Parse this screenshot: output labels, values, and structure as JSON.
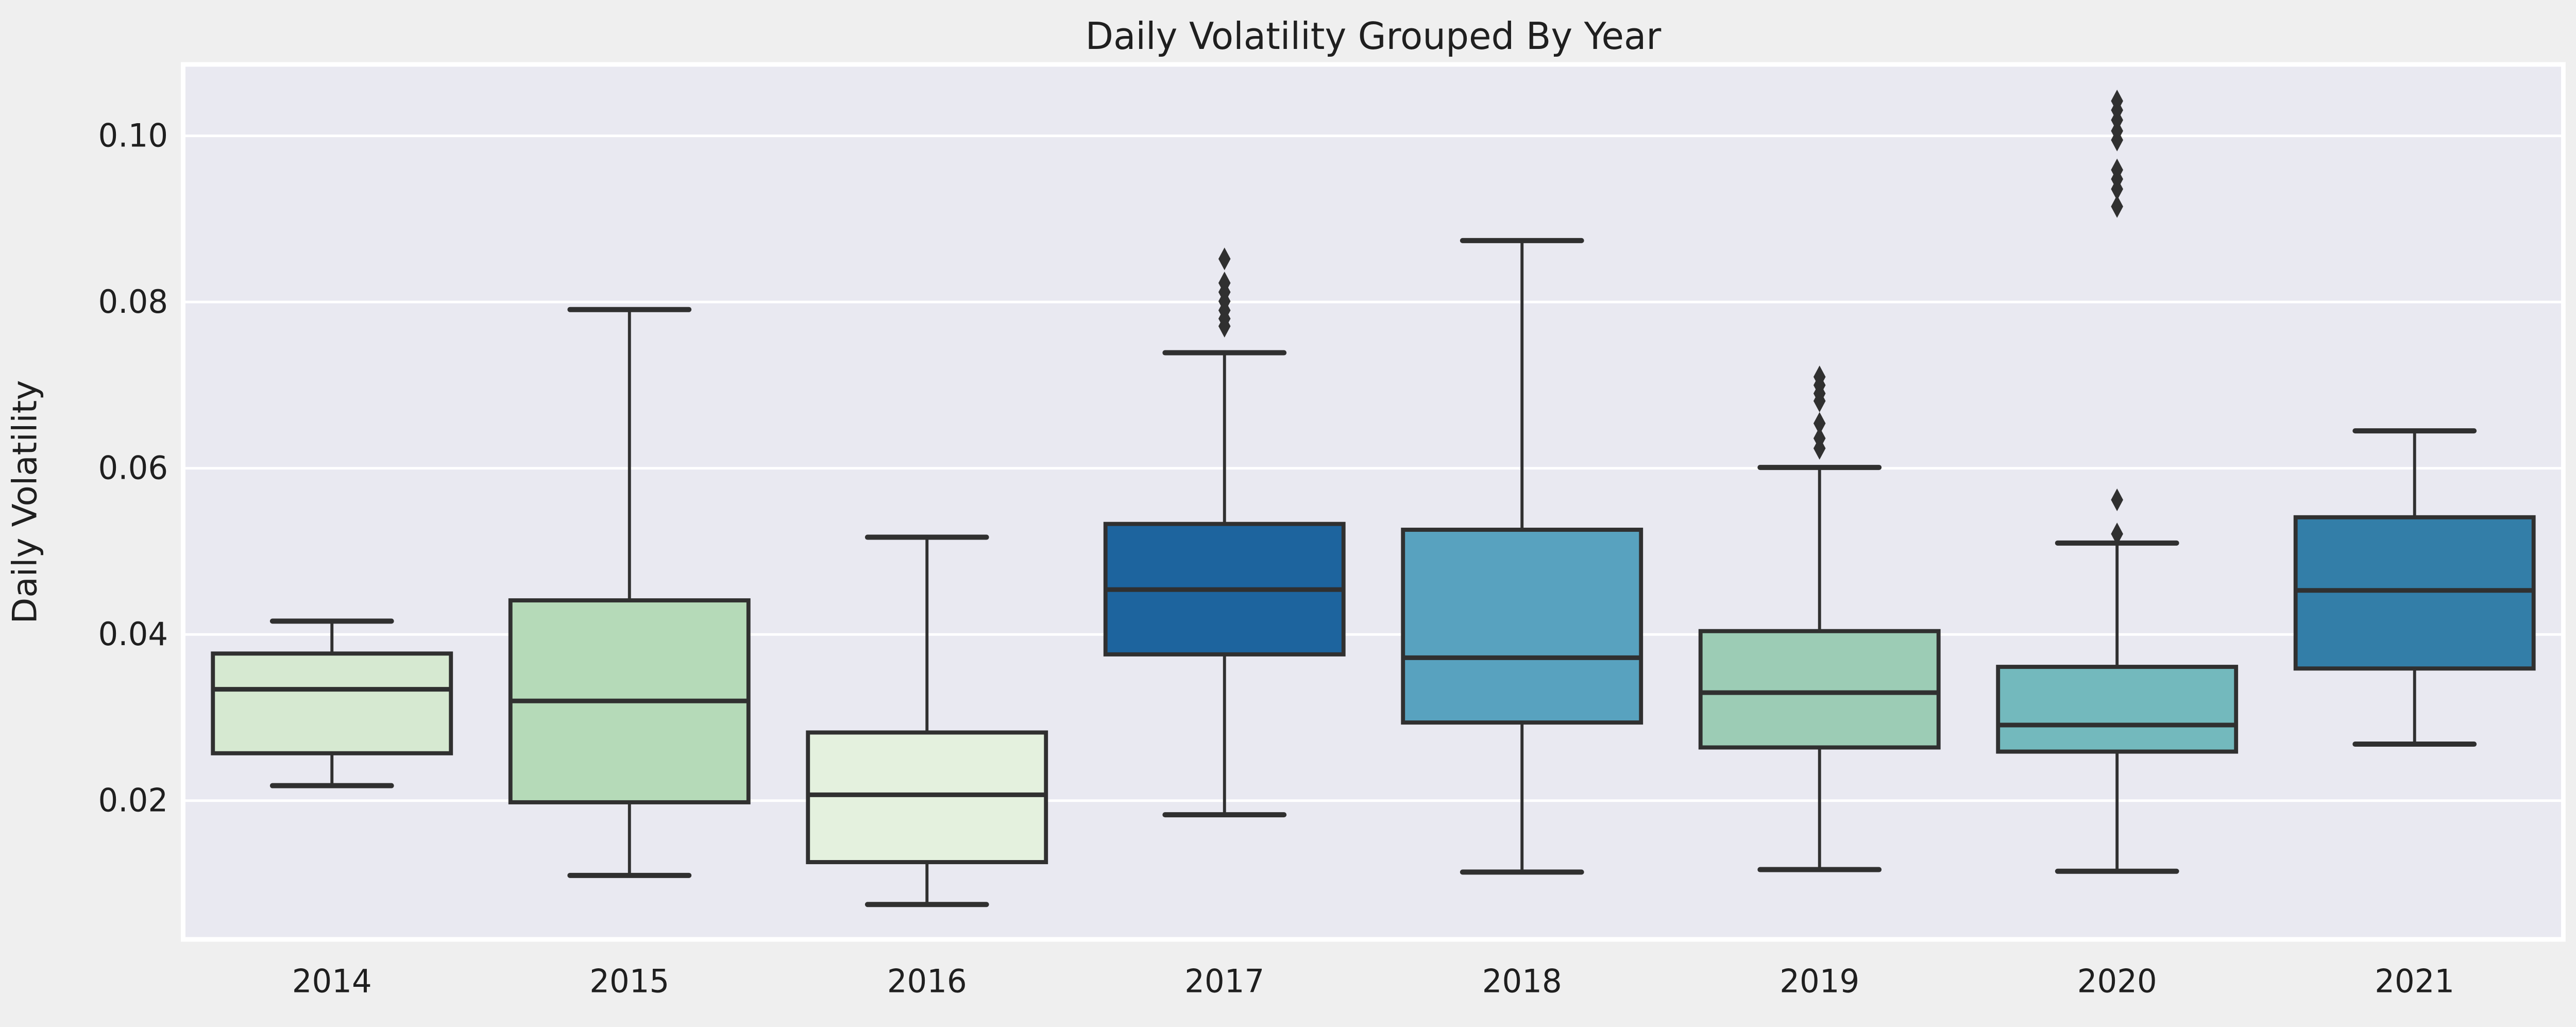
{
  "figure": {
    "background": "#efefef",
    "plot_background": "#e9e9f1",
    "grid_color": "#ffffff",
    "line_color": "#303030",
    "text_color": "#1f1f1f"
  },
  "chart_data": {
    "type": "box",
    "title": "Daily Volatility Grouped By Year",
    "xlabel": "",
    "ylabel": "Daily Volatility",
    "categories": [
      "2014",
      "2015",
      "2016",
      "2017",
      "2018",
      "2019",
      "2020",
      "2021"
    ],
    "yticks": [
      0.02,
      0.04,
      0.06,
      0.08,
      0.1
    ],
    "ytick_labels": [
      "0.02",
      "0.04",
      "0.06",
      "0.08",
      "0.10"
    ],
    "ylim": [
      0.0033,
      0.1086
    ],
    "grid": true,
    "legend": false,
    "series": [
      {
        "label": "2014",
        "color": "#d6e9d1",
        "whisker_low": 0.0218,
        "q1": 0.0257,
        "median": 0.0334,
        "q3": 0.0377,
        "whisker_high": 0.0416,
        "outliers": []
      },
      {
        "label": "2015",
        "color": "#b5dab8",
        "whisker_low": 0.011,
        "q1": 0.0198,
        "median": 0.032,
        "q3": 0.0441,
        "whisker_high": 0.0791,
        "outliers": []
      },
      {
        "label": "2016",
        "color": "#e4f1de",
        "whisker_low": 0.0075,
        "q1": 0.0126,
        "median": 0.0207,
        "q3": 0.0282,
        "whisker_high": 0.0517,
        "outliers": []
      },
      {
        "label": "2017",
        "color": "#1d649e",
        "whisker_low": 0.0183,
        "q1": 0.0376,
        "median": 0.0454,
        "q3": 0.0533,
        "whisker_high": 0.0739,
        "outliers": [
          0.0852,
          0.0823,
          0.0812,
          0.0801,
          0.079,
          0.078,
          0.0771
        ]
      },
      {
        "label": "2018",
        "color": "#58a2bf",
        "whisker_low": 0.0114,
        "q1": 0.0294,
        "median": 0.0372,
        "q3": 0.0526,
        "whisker_high": 0.0874,
        "outliers": []
      },
      {
        "label": "2019",
        "color": "#9cccb5",
        "whisker_low": 0.0117,
        "q1": 0.0264,
        "median": 0.033,
        "q3": 0.0404,
        "whisker_high": 0.0601,
        "outliers": [
          0.071,
          0.07,
          0.069,
          0.0681,
          0.0654,
          0.0636,
          0.0624
        ]
      },
      {
        "label": "2020",
        "color": "#73b9bd",
        "whisker_low": 0.0115,
        "q1": 0.0259,
        "median": 0.0291,
        "q3": 0.0361,
        "whisker_high": 0.051,
        "outliers": [
          0.1042,
          0.1031,
          0.1019,
          0.1006,
          0.0995,
          0.0959,
          0.0948,
          0.0936,
          0.0915,
          0.0562,
          0.0521
        ]
      },
      {
        "label": "2021",
        "color": "#337ea8",
        "whisker_low": 0.0268,
        "q1": 0.0359,
        "median": 0.0453,
        "q3": 0.0541,
        "whisker_high": 0.0645,
        "outliers": []
      }
    ]
  }
}
